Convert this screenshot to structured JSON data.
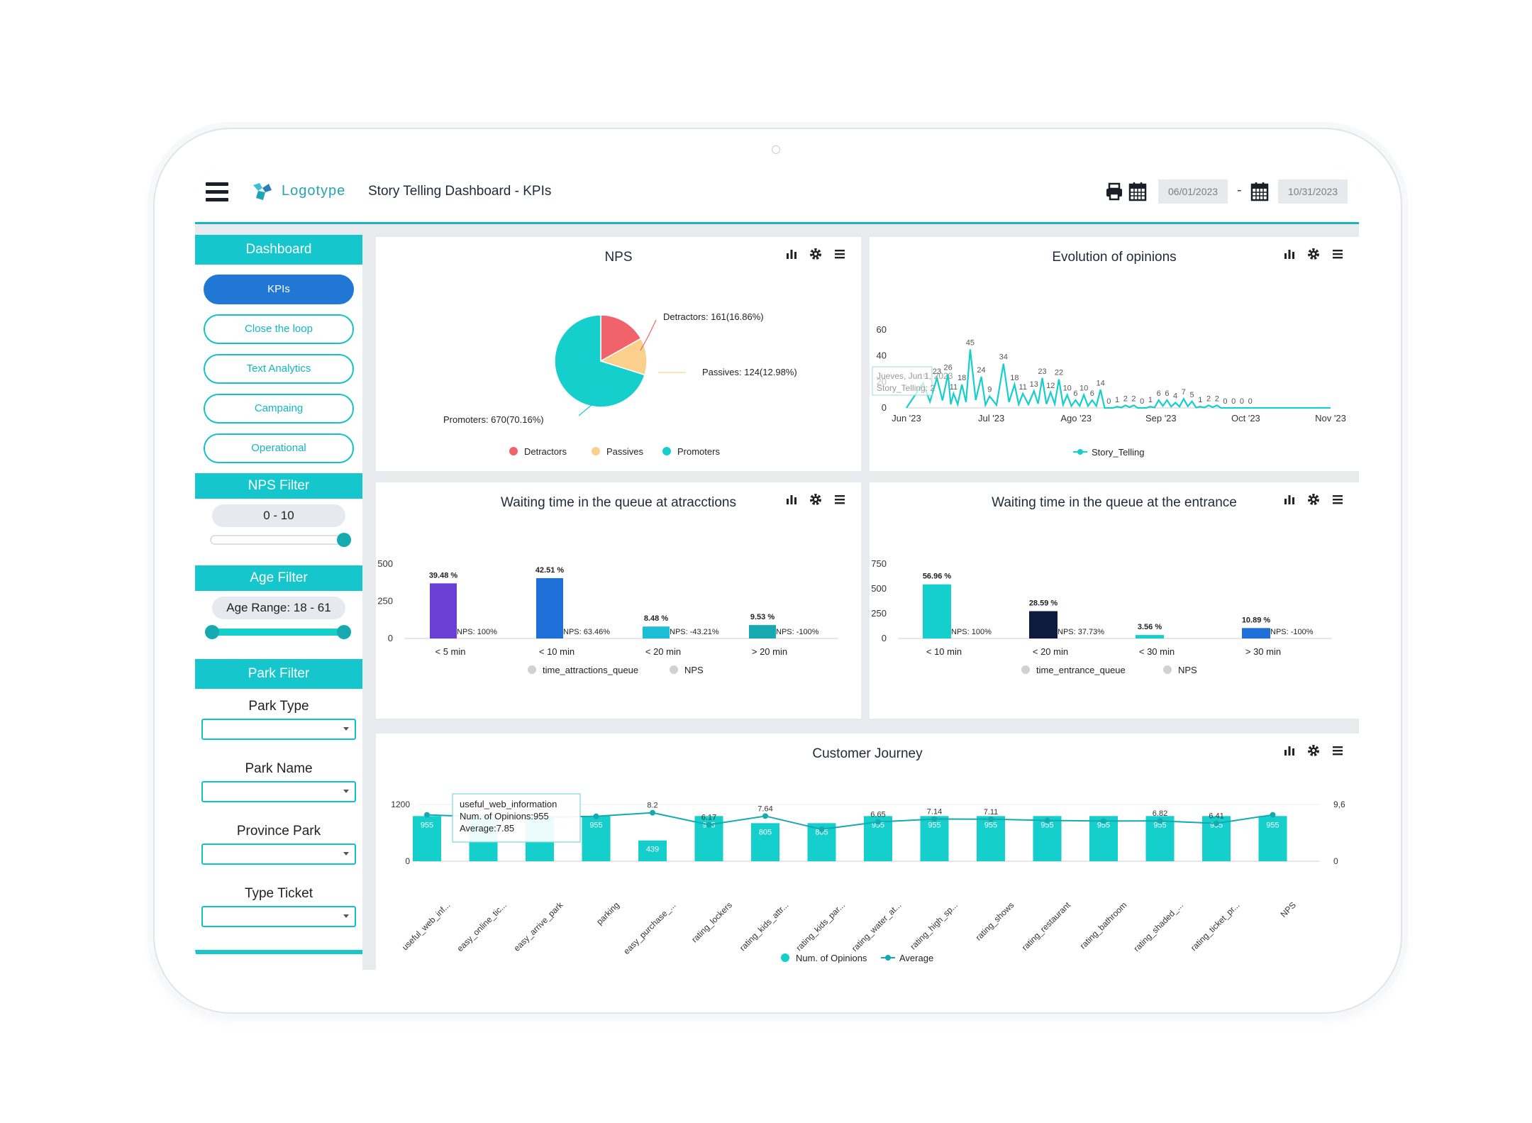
{
  "app": {
    "logo_text": "Logotype",
    "page_title": "Story Telling  Dashboard - KPIs"
  },
  "toolbar": {
    "date_from": "06/01/2023",
    "date_sep": "-",
    "date_to": "10/31/2023",
    "icons": [
      "print-icon",
      "calendar-icon"
    ]
  },
  "sidebar": {
    "dashboard_title": "Dashboard",
    "nav": [
      "KPIs",
      "Close the loop",
      "Text Analytics",
      "Campaing",
      "Operational"
    ],
    "active_nav": "KPIs",
    "nps_filter": {
      "title": "NPS Filter",
      "min": 0,
      "max": 10,
      "range_text": "0  -  10"
    },
    "age_filter": {
      "title": "Age Filter",
      "min": 18,
      "max": 61,
      "range_text": "Age Range: 18  -  61"
    },
    "park_filter": {
      "title": "Park Filter",
      "fields": [
        {
          "label": "Park Type",
          "value": ""
        },
        {
          "label": "Park Name",
          "value": ""
        },
        {
          "label": "Province Park",
          "value": ""
        },
        {
          "label": "Type Ticket",
          "value": ""
        }
      ]
    }
  },
  "colors": {
    "accent": "#15c7cc",
    "active": "#2178d4",
    "detractors": "#f0636a",
    "passives": "#fbd08c",
    "promoters": "#14cfcc"
  },
  "charts": {
    "nps": {
      "title": "NPS",
      "chart_data": {
        "type": "pie",
        "slices": [
          {
            "name": "Detractors",
            "value": 161,
            "label": "Detractors: 161(16.86%)"
          },
          {
            "name": "Passives",
            "value": 124,
            "label": "Passives: 124(12.98%)"
          },
          {
            "name": "Promoters",
            "value": 670,
            "label": "Promoters: 670(70.16%)"
          }
        ]
      }
    },
    "evolution": {
      "title": "Evolution of opinions",
      "chart_data": {
        "type": "line",
        "series_name": "Story_Telling",
        "x_ticks": [
          "Jun '23",
          "Jul '23",
          "Ago '23",
          "Sep '23",
          "Oct '23",
          "Nov '23"
        ],
        "y_ticks": [
          0,
          20,
          40,
          60
        ],
        "ylim": [
          0,
          60
        ],
        "peaks": [
          {
            "day": 6,
            "value": 19,
            "label": "19"
          },
          {
            "day": 11,
            "value": 23,
            "label": "23"
          },
          {
            "day": 15,
            "value": 26,
            "label": "26"
          },
          {
            "day": 17,
            "value": 11,
            "label": "11"
          },
          {
            "day": 20,
            "value": 18,
            "label": "18"
          },
          {
            "day": 23,
            "value": 45,
            "label": "45"
          },
          {
            "day": 27,
            "value": 24,
            "label": "24"
          },
          {
            "day": 30,
            "value": 9,
            "label": "9"
          },
          {
            "day": 35,
            "value": 34,
            "label": "34"
          },
          {
            "day": 39,
            "value": 18,
            "label": "18"
          },
          {
            "day": 42,
            "value": 11,
            "label": "11"
          },
          {
            "day": 46,
            "value": 13,
            "label": "13"
          },
          {
            "day": 49,
            "value": 23,
            "label": "23"
          },
          {
            "day": 52,
            "value": 12,
            "label": "12"
          },
          {
            "day": 55,
            "value": 22,
            "label": "22"
          },
          {
            "day": 58,
            "value": 10,
            "label": "10"
          },
          {
            "day": 61,
            "value": 6,
            "label": "6"
          },
          {
            "day": 64,
            "value": 10,
            "label": "10"
          },
          {
            "day": 67,
            "value": 6,
            "label": "6"
          },
          {
            "day": 70,
            "value": 14,
            "label": "14"
          },
          {
            "day": 73,
            "value": 0,
            "label": "0"
          },
          {
            "day": 76,
            "value": 1,
            "label": "1"
          },
          {
            "day": 79,
            "value": 2,
            "label": "2"
          },
          {
            "day": 82,
            "value": 2,
            "label": "2"
          },
          {
            "day": 85,
            "value": 0,
            "label": "0"
          },
          {
            "day": 88,
            "value": 1,
            "label": "1"
          },
          {
            "day": 91,
            "value": 6,
            "label": "6"
          },
          {
            "day": 94,
            "value": 6,
            "label": "6"
          },
          {
            "day": 97,
            "value": 4,
            "label": "4"
          },
          {
            "day": 100,
            "value": 7,
            "label": "7"
          },
          {
            "day": 103,
            "value": 5,
            "label": "5"
          },
          {
            "day": 106,
            "value": 1,
            "label": "1"
          },
          {
            "day": 109,
            "value": 2,
            "label": "2"
          },
          {
            "day": 112,
            "value": 2,
            "label": "2"
          },
          {
            "day": 115,
            "value": 0,
            "label": "0"
          },
          {
            "day": 118,
            "value": 0,
            "label": "0"
          },
          {
            "day": 121,
            "value": 0,
            "label": "0"
          },
          {
            "day": 124,
            "value": 0,
            "label": "0"
          }
        ],
        "tooltip": [
          "Jueves, Jun 1, 2023",
          "Story_Telling: 2"
        ]
      }
    },
    "wait_attractions": {
      "title": "Waiting time in the queue at atracctions",
      "chart_data": {
        "type": "bar",
        "categories": [
          "< 5 min",
          "< 10 min",
          "< 20 min",
          "> 20 min"
        ],
        "values": [
          370,
          405,
          80,
          90
        ],
        "pct_labels": [
          "39.48 %",
          "42.51 %",
          "8.48 %",
          "9.53 %"
        ],
        "nps_labels": [
          "NPS: 100%",
          "NPS: 63.46%",
          "NPS: -43.21%",
          "NPS: -100%"
        ],
        "bar_colors": [
          "#6a3fd4",
          "#1e6fd8",
          "#1ebdd6",
          "#14aab0"
        ],
        "y_ticks": [
          0,
          250,
          500
        ],
        "ylim": [
          0,
          500
        ],
        "legend": [
          "time_attractions_queue",
          "NPS"
        ]
      }
    },
    "wait_entrance": {
      "title": "Waiting time in the queue at the entrance",
      "chart_data": {
        "type": "bar",
        "categories": [
          "< 10 min",
          "< 20 min",
          "< 30 min",
          "> 30 min"
        ],
        "values": [
          545,
          275,
          35,
          105
        ],
        "pct_labels": [
          "56.96 %",
          "28.59 %",
          "3.56 %",
          "10.89 %"
        ],
        "nps_labels": [
          "NPS: 100%",
          "NPS: 37.73%",
          "",
          "NPS: -100%"
        ],
        "bar_colors": [
          "#14cfcc",
          "#0d1b3e",
          "#14cfcc",
          "#1e6fd8"
        ],
        "y_ticks": [
          0,
          250,
          500,
          750
        ],
        "ylim": [
          0,
          750
        ],
        "legend": [
          "time_entrance_queue",
          "NPS"
        ]
      }
    },
    "journey": {
      "title": "Customer Journey",
      "chart_data": {
        "type": "bar",
        "categories": [
          "useful_web_inf...",
          "easy_online_tic...",
          "easy_arrive_park",
          "parking",
          "easy_purchase_...",
          "rating_lockers",
          "rating_kids_attr...",
          "rating_kids_par...",
          "rating_water_at...",
          "rating_high_sp...",
          "rating_shows",
          "rating_restaurant",
          "rating_bathroom",
          "rating_shaded_...",
          "rating_ticket_pr...",
          "NPS"
        ],
        "opinions": [
          955,
          955,
          955,
          955,
          439,
          955,
          805,
          805,
          955,
          955,
          955,
          955,
          955,
          955,
          955,
          955
        ],
        "opinion_labels": [
          "955",
          "",
          "",
          "955",
          "439",
          "955",
          "805",
          "805",
          "955",
          "955",
          "955",
          "955",
          "955",
          "955",
          "955",
          "955"
        ],
        "averages": [
          7.85,
          7.5,
          7.4,
          7.6,
          8.2,
          6.17,
          7.64,
          5.4,
          6.65,
          7.14,
          7.11,
          6.9,
          6.8,
          6.82,
          6.41,
          7.85
        ],
        "average_labels": [
          "",
          "",
          "",
          "",
          "8.2",
          "6.17",
          "7.64",
          "",
          "6.65",
          "7.14",
          "7.11",
          "",
          "",
          "6.82",
          "6.41",
          ""
        ],
        "y_left_ticks": [
          "0",
          "1200"
        ],
        "y_right_ticks": [
          "0",
          "9,6"
        ],
        "legend": [
          "Num. of Opinions",
          "Average"
        ],
        "tooltip": [
          "useful_web_information",
          "Num. of Opinions:955",
          "Average:7.85"
        ]
      }
    }
  }
}
